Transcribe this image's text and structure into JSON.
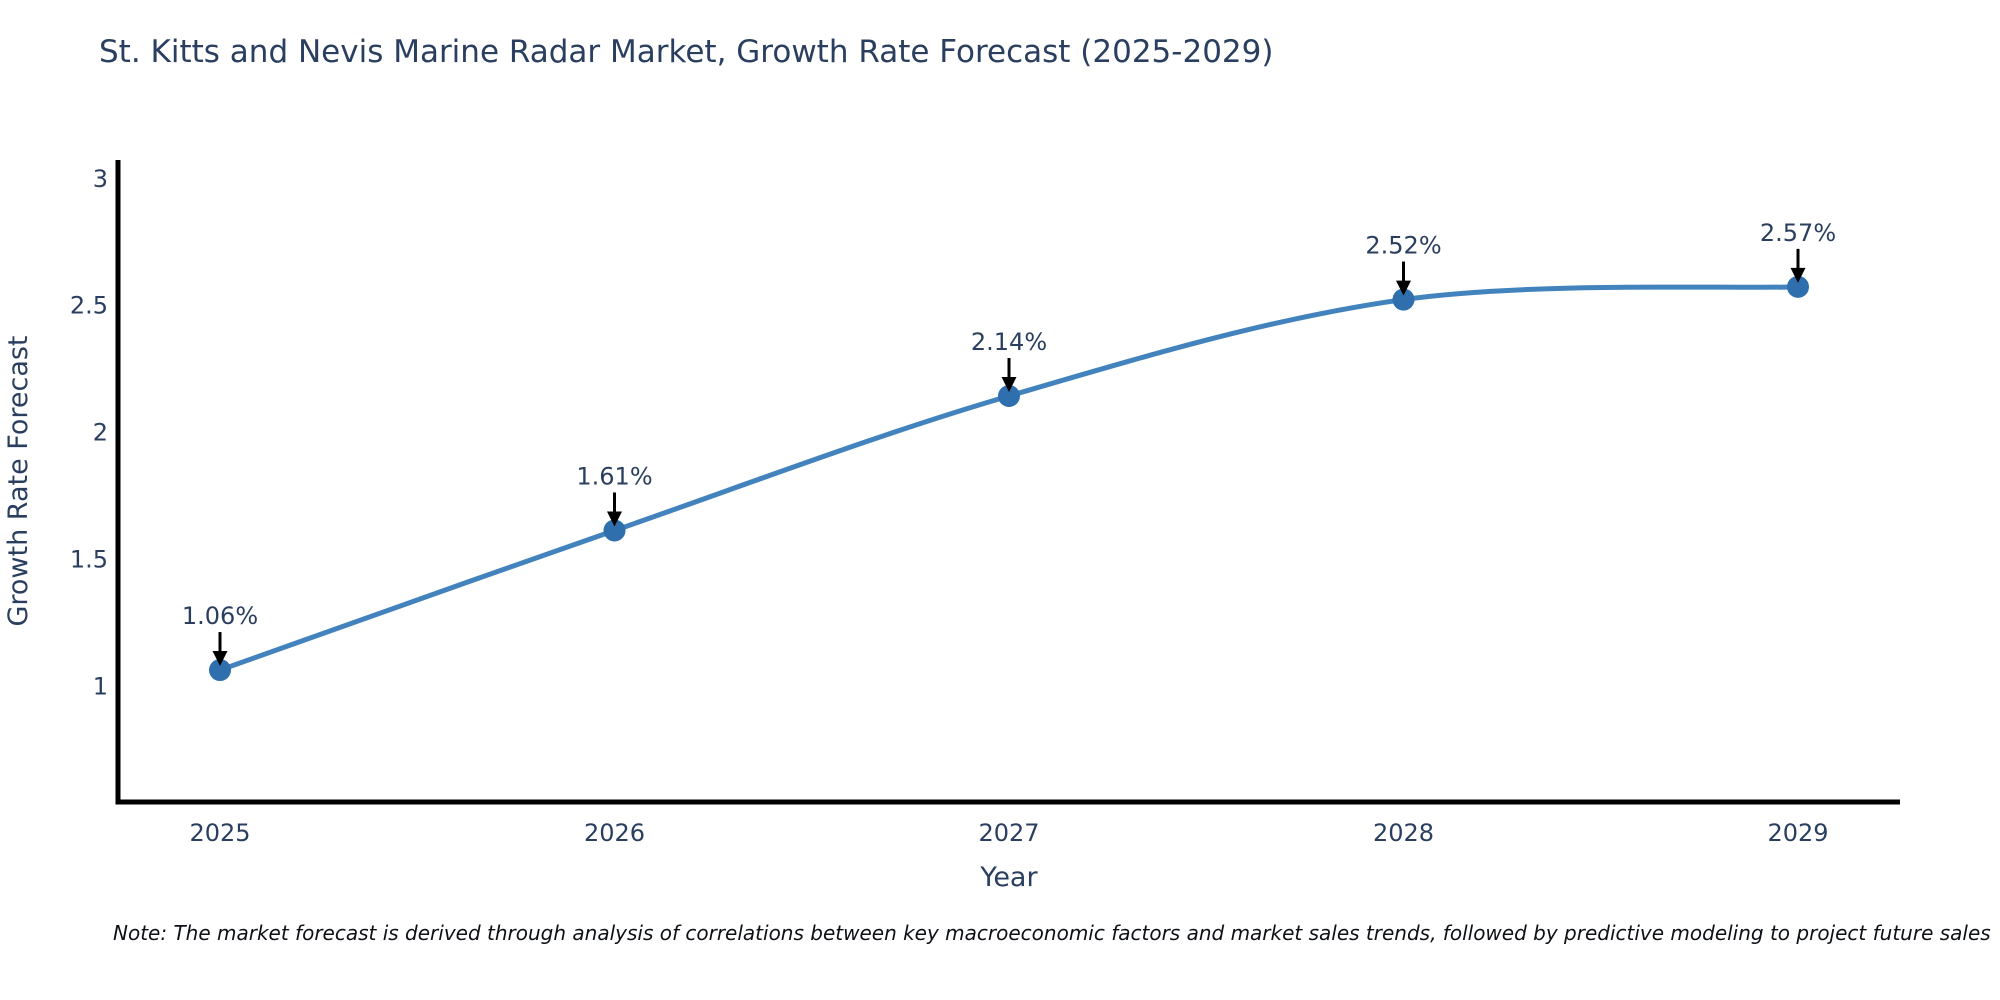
{
  "page": {
    "background": "#ffffff"
  },
  "chart_data": {
    "type": "line",
    "title": "St. Kitts and Nevis Marine Radar Market, Growth Rate Forecast (2025-2029)",
    "xlabel": "Year",
    "ylabel": "Growth Rate Forecast",
    "x": [
      2025,
      2026,
      2027,
      2028,
      2029
    ],
    "values": [
      1.06,
      1.61,
      2.14,
      2.52,
      2.57
    ],
    "point_labels": [
      "1.06%",
      "1.61%",
      "2.14%",
      "2.52%",
      "2.57%"
    ],
    "xtick_labels": [
      "2025",
      "2026",
      "2027",
      "2028",
      "2029"
    ],
    "yticks": [
      1,
      1.5,
      2,
      2.5,
      3
    ],
    "ytick_labels": [
      "1",
      "1.5",
      "2",
      "2.5",
      "3"
    ],
    "ylim": [
      0.54,
      3.07
    ],
    "line_shape": "spline",
    "grid": false,
    "legend": "none",
    "colors": {
      "line": "#4383bd",
      "marker": "#2f6fae",
      "axis": "#000000",
      "text": "#2a3f5f",
      "annotation_text": "#2a3f5f",
      "annotation_arrow": "#000000"
    }
  },
  "note": {
    "text": "Note: The market forecast is derived through analysis of correlations between key macroeconomic factors and market sales trends, followed by predictive modeling to project future sales"
  }
}
